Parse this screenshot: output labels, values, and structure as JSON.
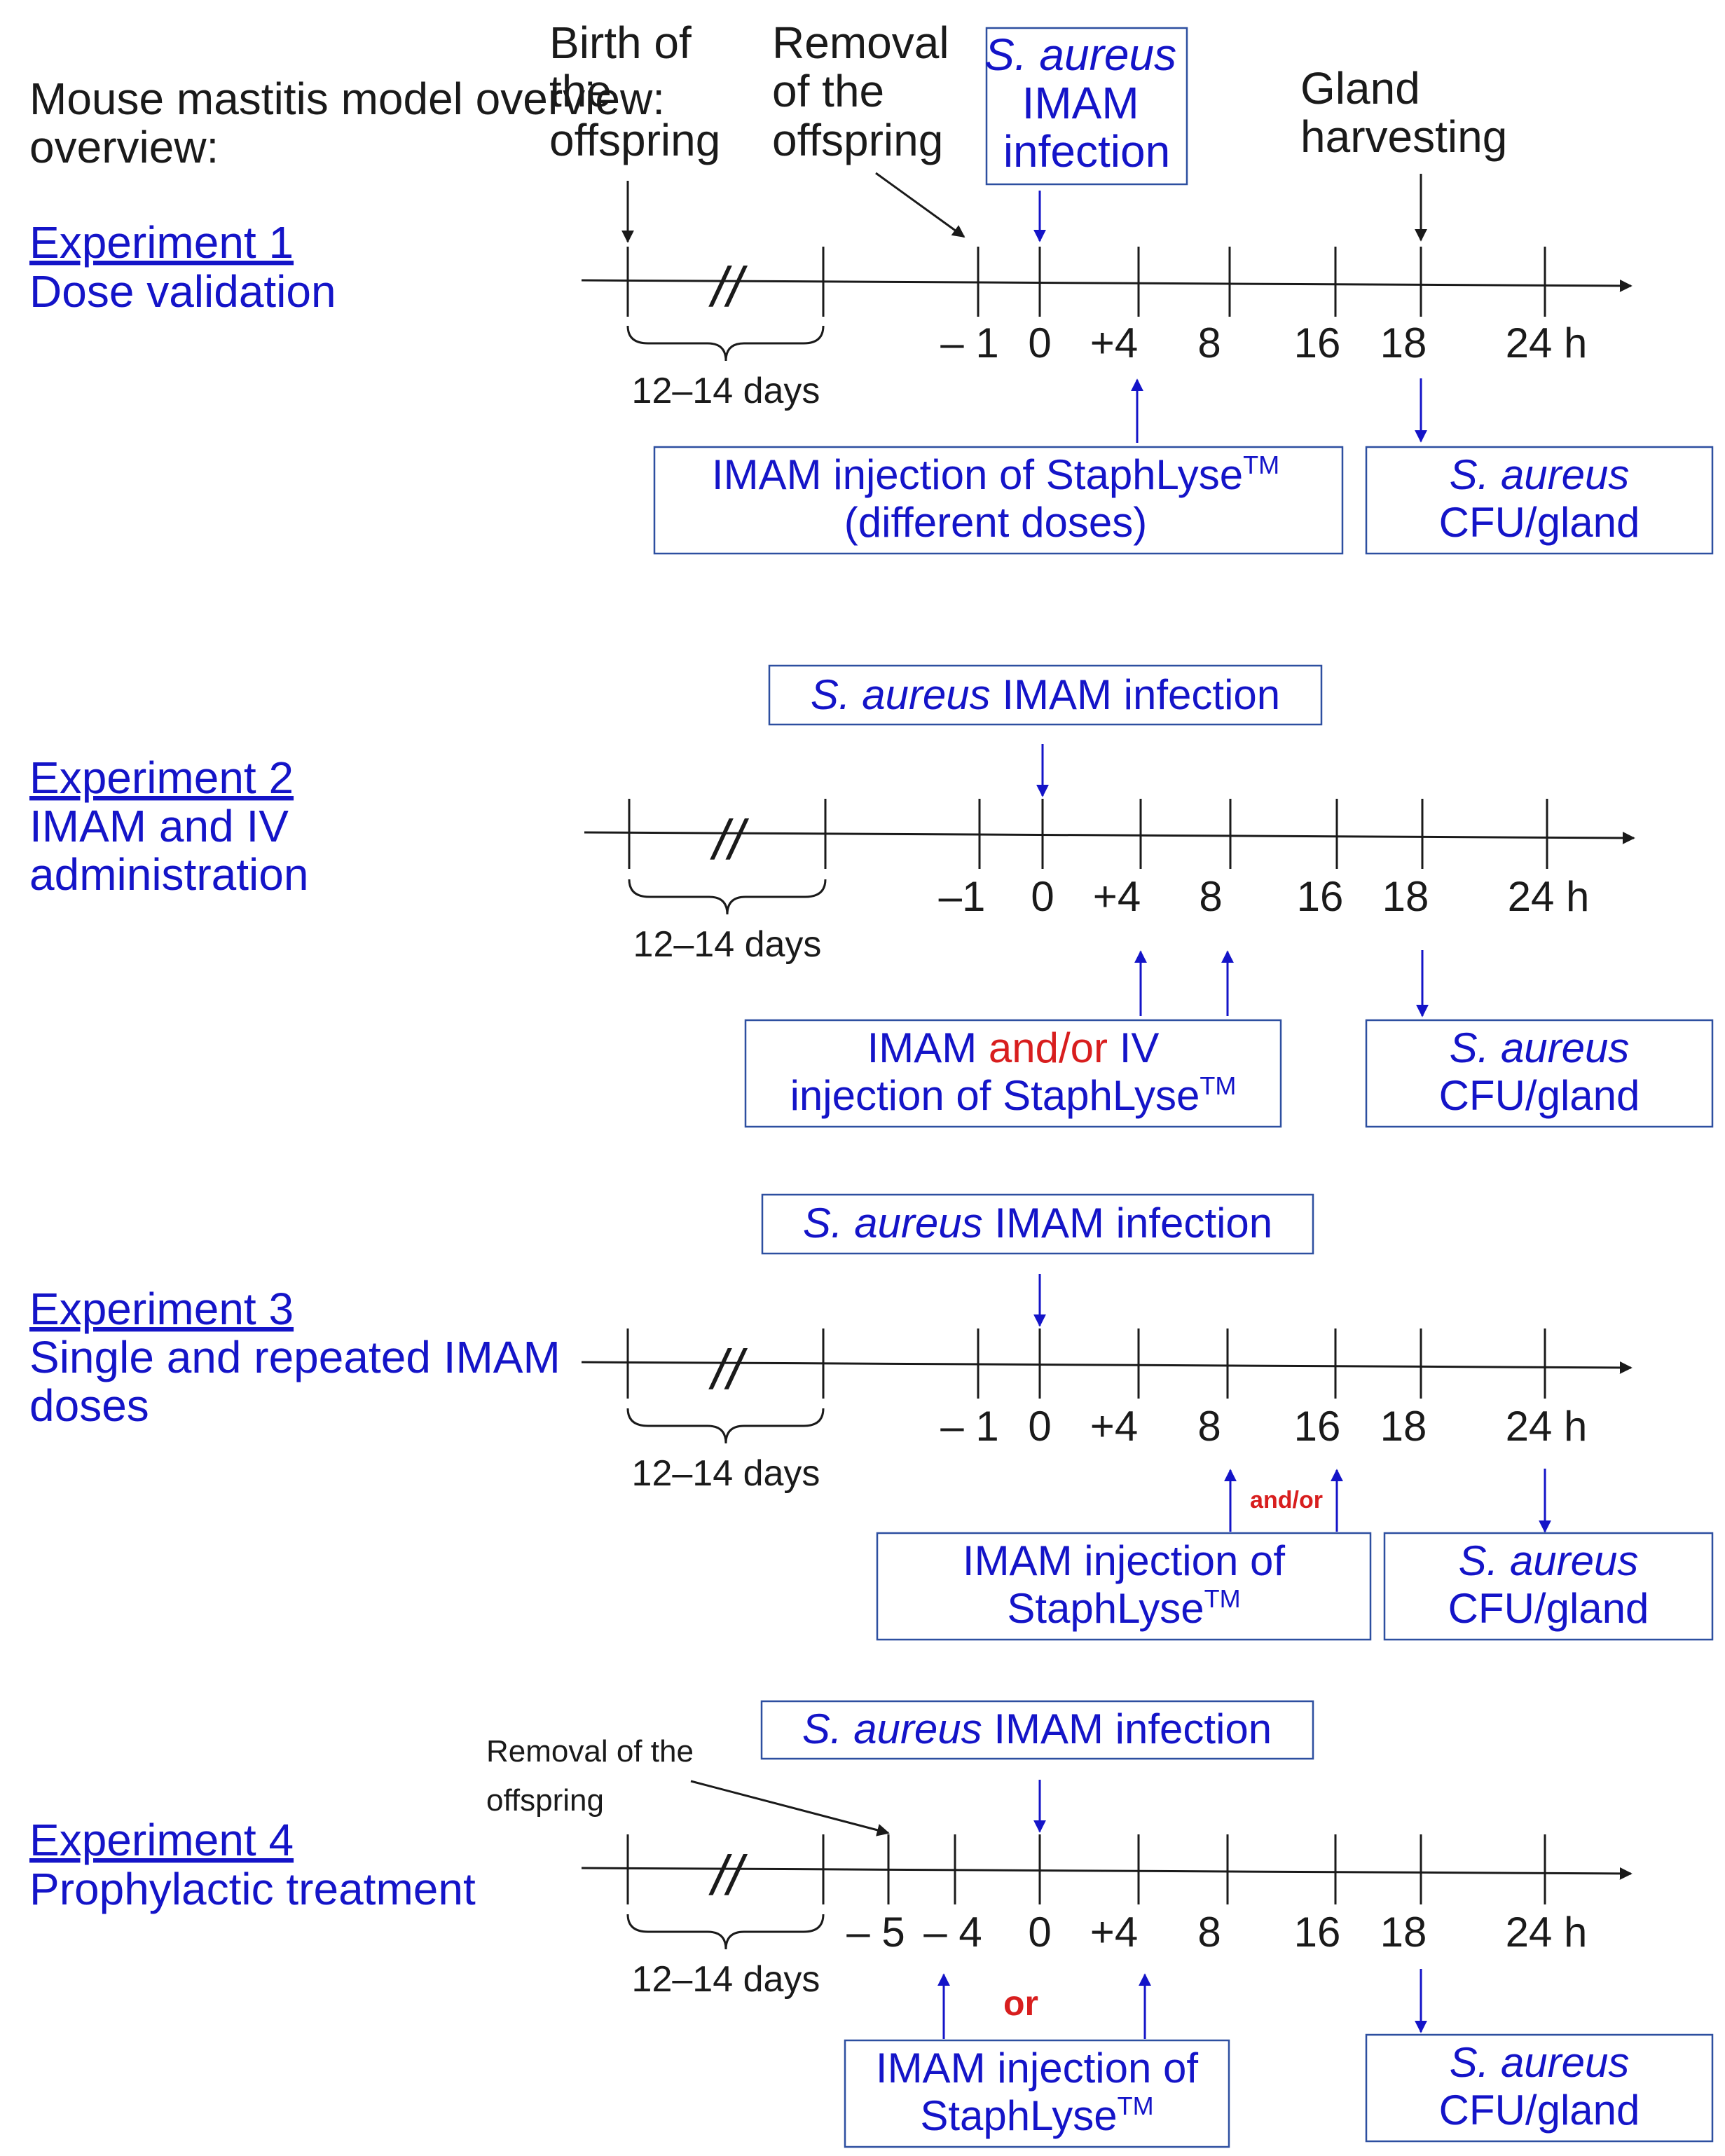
{
  "title": "Mouse mastitis model overview:",
  "colors": {
    "black": "#1a1a1a",
    "blue": "#1414c8",
    "red": "#d81e1e",
    "box_border": "#2d4fa0"
  },
  "common": {
    "interval_label": "12–14 days",
    "break_mark": "//",
    "cfu_line1": "S. aureus",
    "cfu_line2": "CFU/gland",
    "infection_species": "S. aureus",
    "infection_rest": " IMAM infection"
  },
  "exp1": {
    "link": "Experiment 1",
    "subtitle": "Dose validation",
    "birth": [
      "Birth of",
      "the",
      "offspring"
    ],
    "removal": [
      "Removal",
      "of the",
      "offspring"
    ],
    "infection": [
      "S. aureus",
      "IMAM",
      "infection"
    ],
    "harvest": [
      "Gland",
      "harvesting"
    ],
    "ticks": [
      "– 1",
      "0",
      "+4",
      "8",
      "16",
      "18",
      "24 h"
    ],
    "treatment": [
      "IMAM injection of StaphLyse",
      "(different doses)"
    ],
    "tm": "TM"
  },
  "exp2": {
    "link": "Experiment 2",
    "subtitle": [
      "IMAM and IV",
      "administration"
    ],
    "ticks": [
      "–1",
      "0",
      "+4",
      "8",
      "16",
      "18",
      "24 h"
    ],
    "treatment_a": "IMAM ",
    "treatment_or": "and/or",
    "treatment_b": " IV",
    "treatment_2": "injection of StaphLyse",
    "tm": "TM"
  },
  "exp3": {
    "link": "Experiment 3",
    "subtitle": [
      "Single and repeated IMAM",
      "doses"
    ],
    "ticks": [
      "– 1",
      "0",
      "+4",
      "8",
      "16",
      "18",
      "24 h"
    ],
    "andor": "and/or",
    "treatment": [
      "IMAM injection of",
      "StaphLyse"
    ],
    "tm": "TM"
  },
  "exp4": {
    "link": "Experiment 4",
    "subtitle": "Prophylactic treatment",
    "removal": [
      "Removal of the",
      "offspring"
    ],
    "ticks": [
      "– 5",
      "– 4",
      "0",
      "+4",
      "8",
      "16",
      "18",
      "24 h"
    ],
    "or": "or",
    "treatment": [
      "IMAM injection of",
      "StaphLyse"
    ],
    "tm": "TM"
  }
}
